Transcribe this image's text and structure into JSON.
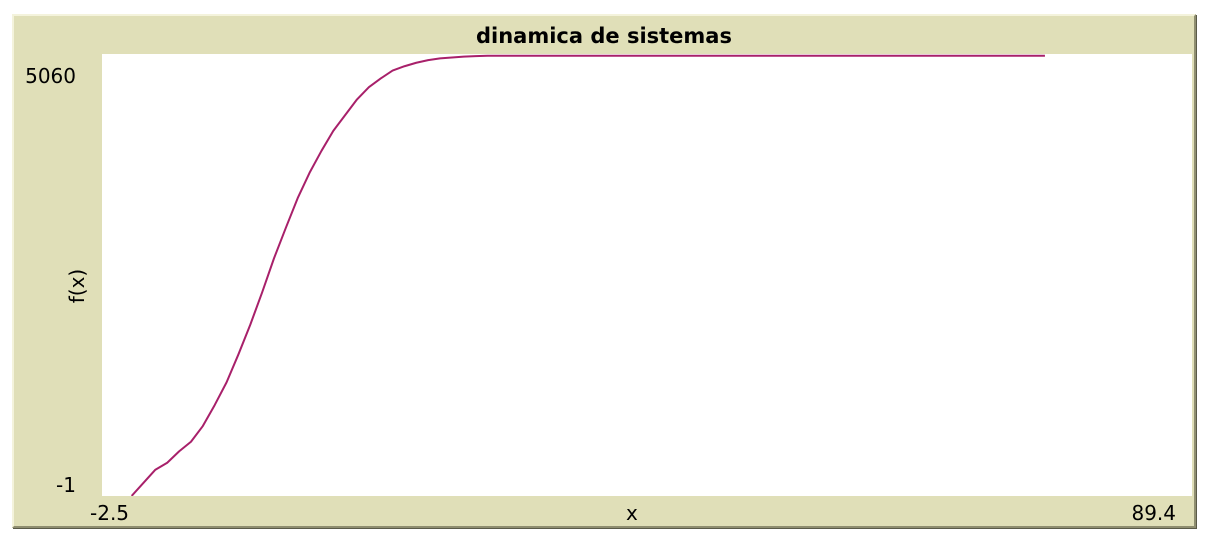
{
  "chart_data": {
    "type": "line",
    "title": "dinamica de sistemas",
    "xlabel": "x",
    "ylabel": "f(x)",
    "xlim": [
      -2.5,
      89.4
    ],
    "ylim": [
      -1,
      5060
    ],
    "xlim_labels": [
      "-2.5",
      "89.4"
    ],
    "ylim_labels": [
      "-1",
      "5060"
    ],
    "background": "#ffffff",
    "frame_color": "#e0dfb8",
    "series": [
      {
        "color": "#a8206a",
        "x": [
          0,
          1,
          2,
          3,
          4,
          5,
          6,
          7,
          8,
          9,
          10,
          11,
          12,
          13,
          14,
          15,
          16,
          17,
          18,
          19,
          20,
          21,
          22,
          23,
          24,
          25,
          26,
          27,
          28,
          29,
          30,
          31,
          32,
          35,
          38,
          40,
          45,
          50,
          55,
          60,
          65,
          70,
          75,
          77
        ],
        "y": [
          0,
          150,
          300,
          380,
          510,
          620,
          800,
          1040,
          1300,
          1620,
          1960,
          2330,
          2720,
          3070,
          3410,
          3700,
          3950,
          4180,
          4360,
          4540,
          4680,
          4780,
          4870,
          4920,
          4960,
          4990,
          5010,
          5020,
          5030,
          5035,
          5040,
          5040,
          5040,
          5040,
          5040,
          5040,
          5040,
          5040,
          5040,
          5040,
          5040,
          5040,
          5040,
          5040
        ]
      }
    ]
  }
}
